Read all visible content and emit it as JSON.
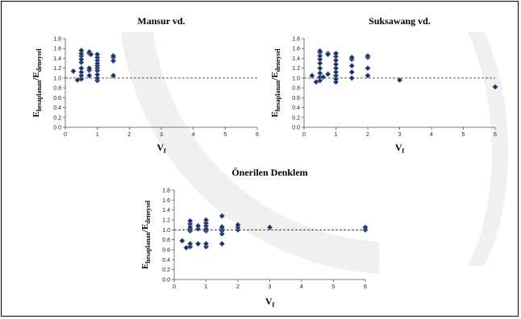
{
  "colors": {
    "marker": "#1a2f5a",
    "marker_edge": "#6f86b8",
    "axis": "#555555",
    "watermark": "#eeeeee"
  },
  "chart_data": [
    {
      "type": "scatter",
      "title": "Mansur vd.",
      "xlabel": "V",
      "xlabel_sub": "f",
      "ylabel": "E",
      "ylabel_sub": "hesaplanan",
      "ylabel_sep": "/E",
      "ylabel_sub2": "deneysel",
      "xlim": [
        0,
        6
      ],
      "ylim": [
        0,
        1.8
      ],
      "xticks": [
        "0",
        "1",
        "2",
        "3",
        "4",
        "5",
        "6"
      ],
      "yticks": [
        "0.0",
        "0.2",
        "0.4",
        "0.6",
        "0.8",
        "1.0",
        "1.2",
        "1.4",
        "1.6",
        "1.8"
      ],
      "reference_line": 1.0,
      "points": [
        [
          0.25,
          1.14
        ],
        [
          0.38,
          0.96
        ],
        [
          0.5,
          0.98
        ],
        [
          0.5,
          1.05
        ],
        [
          0.5,
          1.12
        ],
        [
          0.5,
          1.2
        ],
        [
          0.5,
          1.32
        ],
        [
          0.5,
          1.38
        ],
        [
          0.5,
          1.45
        ],
        [
          0.5,
          1.5
        ],
        [
          0.5,
          1.56
        ],
        [
          0.75,
          1.05
        ],
        [
          0.75,
          1.16
        ],
        [
          0.75,
          1.2
        ],
        [
          0.75,
          1.5
        ],
        [
          0.75,
          1.53
        ],
        [
          0.8,
          1.48
        ],
        [
          1.0,
          0.95
        ],
        [
          1.0,
          1.0
        ],
        [
          1.0,
          1.07
        ],
        [
          1.0,
          1.15
        ],
        [
          1.0,
          1.2
        ],
        [
          1.0,
          1.25
        ],
        [
          1.0,
          1.3
        ],
        [
          1.0,
          1.36
        ],
        [
          1.0,
          1.42
        ],
        [
          1.0,
          1.48
        ],
        [
          1.5,
          1.05
        ],
        [
          1.5,
          1.35
        ],
        [
          1.5,
          1.42
        ],
        [
          1.5,
          1.45
        ]
      ]
    },
    {
      "type": "scatter",
      "title": "Suksawang vd.",
      "xlabel": "V",
      "xlabel_sub": "f",
      "ylabel": "E",
      "ylabel_sub": "hesaplanan",
      "ylabel_sep": "/E",
      "ylabel_sub2": "deneysel",
      "xlim": [
        0,
        6
      ],
      "ylim": [
        0,
        1.8
      ],
      "xticks": [
        "0",
        "1",
        "2",
        "3",
        "4",
        "5",
        "6"
      ],
      "yticks": [
        "0.0",
        "0.2",
        "0.4",
        "0.6",
        "0.8",
        "1.0",
        "1.2",
        "1.4",
        "1.6",
        "1.8"
      ],
      "reference_line": 1.0,
      "points": [
        [
          0.25,
          1.05
        ],
        [
          0.38,
          0.92
        ],
        [
          0.5,
          0.95
        ],
        [
          0.5,
          1.02
        ],
        [
          0.5,
          1.1
        ],
        [
          0.5,
          1.2
        ],
        [
          0.5,
          1.3
        ],
        [
          0.5,
          1.38
        ],
        [
          0.5,
          1.45
        ],
        [
          0.5,
          1.52
        ],
        [
          0.5,
          1.55
        ],
        [
          0.6,
          1.02
        ],
        [
          0.75,
          1.08
        ],
        [
          0.75,
          1.5
        ],
        [
          0.75,
          1.48
        ],
        [
          1.0,
          0.92
        ],
        [
          1.0,
          0.98
        ],
        [
          1.0,
          1.05
        ],
        [
          1.0,
          1.12
        ],
        [
          1.0,
          1.2
        ],
        [
          1.0,
          1.28
        ],
        [
          1.0,
          1.36
        ],
        [
          1.0,
          1.44
        ],
        [
          1.0,
          1.5
        ],
        [
          1.5,
          1.0
        ],
        [
          1.5,
          1.12
        ],
        [
          1.5,
          1.25
        ],
        [
          1.5,
          1.38
        ],
        [
          1.5,
          1.42
        ],
        [
          2.0,
          1.05
        ],
        [
          2.0,
          1.2
        ],
        [
          2.0,
          1.42
        ],
        [
          2.0,
          1.45
        ],
        [
          3.0,
          0.96
        ],
        [
          6.0,
          0.82
        ]
      ]
    },
    {
      "type": "scatter",
      "title": "Önerilen Denklem",
      "xlabel": "V",
      "xlabel_sub": "f",
      "ylabel": "E",
      "ylabel_sub": "hesaplanan",
      "ylabel_sep": "/E",
      "ylabel_sub2": "deneysel",
      "xlim": [
        0,
        6
      ],
      "ylim": [
        0,
        1.8
      ],
      "xticks": [
        "0",
        "1",
        "2",
        "3",
        "4",
        "5",
        "6"
      ],
      "yticks": [
        "0.0",
        "0.2",
        "0.4",
        "0.6",
        "0.8",
        "1.0",
        "1.2",
        "1.4",
        "1.6",
        "1.8"
      ],
      "reference_line": 1.0,
      "points": [
        [
          0.25,
          0.78
        ],
        [
          0.38,
          0.64
        ],
        [
          0.5,
          0.66
        ],
        [
          0.5,
          0.72
        ],
        [
          0.5,
          0.98
        ],
        [
          0.5,
          1.02
        ],
        [
          0.5,
          1.06
        ],
        [
          0.5,
          1.12
        ],
        [
          0.5,
          1.18
        ],
        [
          0.75,
          0.72
        ],
        [
          0.75,
          1.02
        ],
        [
          0.75,
          1.08
        ],
        [
          1.0,
          0.66
        ],
        [
          1.0,
          0.72
        ],
        [
          1.0,
          0.98
        ],
        [
          1.0,
          1.02
        ],
        [
          1.0,
          1.08
        ],
        [
          1.0,
          1.14
        ],
        [
          1.0,
          1.2
        ],
        [
          1.5,
          0.72
        ],
        [
          1.5,
          0.92
        ],
        [
          1.5,
          0.98
        ],
        [
          1.5,
          1.02
        ],
        [
          1.5,
          1.06
        ],
        [
          1.5,
          1.28
        ],
        [
          2.0,
          1.0
        ],
        [
          2.0,
          1.05
        ],
        [
          2.0,
          1.1
        ],
        [
          3.0,
          1.05
        ],
        [
          6.0,
          1.0
        ],
        [
          6.0,
          1.05
        ]
      ]
    }
  ]
}
